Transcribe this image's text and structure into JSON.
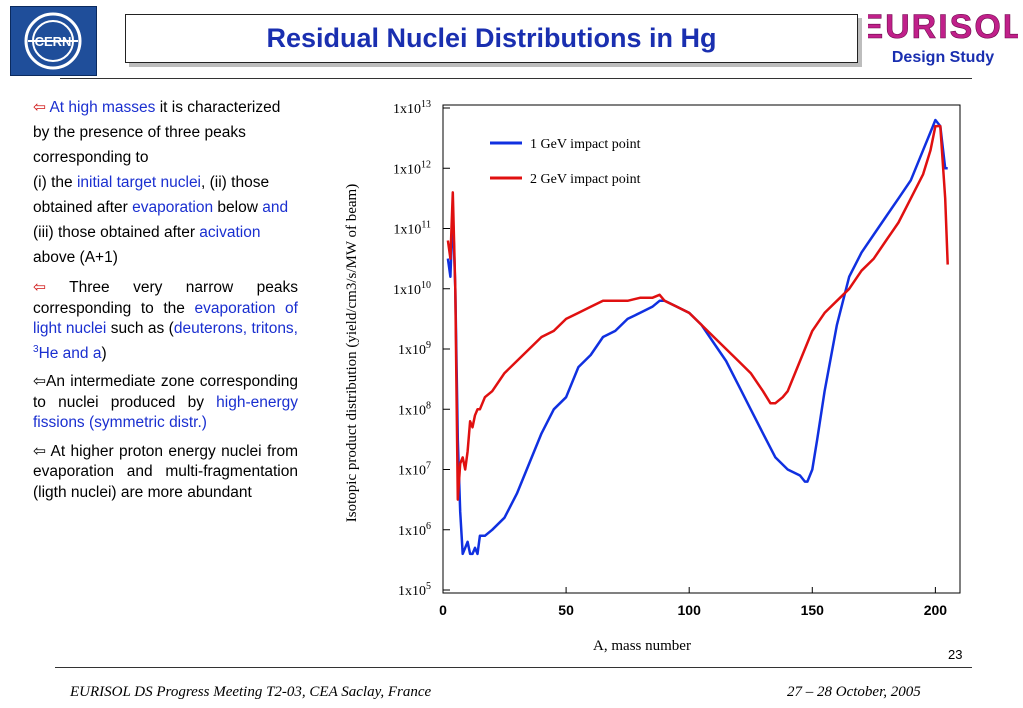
{
  "header": {
    "title": "Residual Nuclei Distributions in Hg",
    "cern_logo_text": "CERN",
    "eurisol_logo_text": "EURISOL",
    "eurisol_subtitle": "Design Study"
  },
  "body": {
    "p1": {
      "a": "At high masses",
      "b": " it is characterized by the presence of three peaks corresponding to",
      "c": "(i) the ",
      "d": "initial target nuclei",
      "e": ", (ii) those obtained after ",
      "f": "evaporation",
      "g": " below ",
      "h": "and",
      "i": " (iii) those obtained after ",
      "j": "acivation",
      "k": " above (A+1)"
    },
    "p2": {
      "a": " Three very narrow peaks corresponding to the ",
      "b": "evaporation of light nuclei",
      "c": " such as (",
      "d": "deuterons, tritons, ",
      "e": "3",
      "f": "He and a",
      "g": ")"
    },
    "p3": {
      "a": "An intermediate zone corresponding to nuclei produced by ",
      "b": "high-energy fissions (symmetric distr.)"
    },
    "p4": {
      "a": " At higher proton energy nuclei from evaporation and multi-fragmentation (ligth nuclei) are more abundant"
    }
  },
  "footer": {
    "left": "EURISOL DS Progress Meeting T2-03, CEA Saclay, France",
    "right": "27 – 28 October, 2005",
    "page": "23"
  },
  "chart_data": {
    "type": "line",
    "xlabel": "A, mass number",
    "ylabel": "Isotopic product distribution (yield/cm3/s/MW of beam)",
    "xlim": [
      0,
      210
    ],
    "ylim_log10": [
      5,
      13
    ],
    "x_ticks": [
      "0",
      "50",
      "100",
      "150",
      "200"
    ],
    "y_ticks": [
      {
        "base": "1x10",
        "exp": "13"
      },
      {
        "base": "1x10",
        "exp": "12"
      },
      {
        "base": "1x10",
        "exp": "11"
      },
      {
        "base": "1x10",
        "exp": "10"
      },
      {
        "base": "1x10",
        "exp": "9"
      },
      {
        "base": "1x10",
        "exp": "8"
      },
      {
        "base": "1x10",
        "exp": "7"
      },
      {
        "base": "1x10",
        "exp": "6"
      },
      {
        "base": "1x10",
        "exp": "5"
      }
    ],
    "series": [
      {
        "name": "1 GeV impact point",
        "color": "#1030e0",
        "x": [
          2,
          3,
          4,
          5,
          6,
          7,
          8,
          9,
          10,
          11,
          12,
          13,
          14,
          15,
          17,
          20,
          25,
          30,
          35,
          40,
          45,
          50,
          55,
          60,
          65,
          70,
          75,
          80,
          85,
          88,
          90,
          95,
          100,
          105,
          110,
          115,
          120,
          125,
          130,
          135,
          140,
          145,
          147,
          148,
          150,
          152,
          155,
          160,
          165,
          170,
          175,
          180,
          185,
          190,
          195,
          198,
          200,
          202,
          204,
          205
        ],
        "y_log10": [
          10.5,
          10.2,
          11.3,
          10.0,
          7.5,
          6.3,
          5.6,
          5.7,
          5.8,
          5.6,
          5.6,
          5.7,
          5.6,
          5.9,
          5.9,
          6.0,
          6.2,
          6.6,
          7.1,
          7.6,
          8.0,
          8.2,
          8.7,
          8.9,
          9.2,
          9.3,
          9.5,
          9.6,
          9.7,
          9.8,
          9.8,
          9.7,
          9.6,
          9.4,
          9.1,
          8.8,
          8.4,
          8.0,
          7.6,
          7.2,
          7.0,
          6.9,
          6.8,
          6.8,
          7.0,
          7.5,
          8.3,
          9.4,
          10.2,
          10.6,
          10.9,
          11.2,
          11.5,
          11.8,
          12.3,
          12.6,
          12.8,
          12.7,
          12.0,
          12.0
        ]
      },
      {
        "name": "2 GeV impact point",
        "color": "#e01010",
        "x": [
          2,
          3,
          4,
          5,
          6,
          7,
          8,
          9,
          10,
          11,
          12,
          13,
          14,
          15,
          17,
          20,
          25,
          30,
          35,
          40,
          45,
          50,
          55,
          60,
          65,
          70,
          75,
          80,
          85,
          88,
          90,
          95,
          100,
          105,
          110,
          115,
          120,
          125,
          130,
          133,
          135,
          138,
          140,
          145,
          150,
          155,
          160,
          165,
          170,
          175,
          180,
          185,
          190,
          195,
          198,
          200,
          202,
          204,
          205
        ],
        "y_log10": [
          10.8,
          10.5,
          11.6,
          10.0,
          6.5,
          7.1,
          7.2,
          7.0,
          7.3,
          7.8,
          7.7,
          7.9,
          8.0,
          8.0,
          8.2,
          8.3,
          8.6,
          8.8,
          9.0,
          9.2,
          9.3,
          9.5,
          9.6,
          9.7,
          9.8,
          9.8,
          9.8,
          9.85,
          9.85,
          9.9,
          9.8,
          9.7,
          9.6,
          9.4,
          9.2,
          9.0,
          8.8,
          8.6,
          8.3,
          8.1,
          8.1,
          8.2,
          8.3,
          8.8,
          9.3,
          9.6,
          9.8,
          10.0,
          10.3,
          10.5,
          10.8,
          11.1,
          11.5,
          11.9,
          12.3,
          12.7,
          12.7,
          11.5,
          10.4
        ]
      }
    ]
  }
}
